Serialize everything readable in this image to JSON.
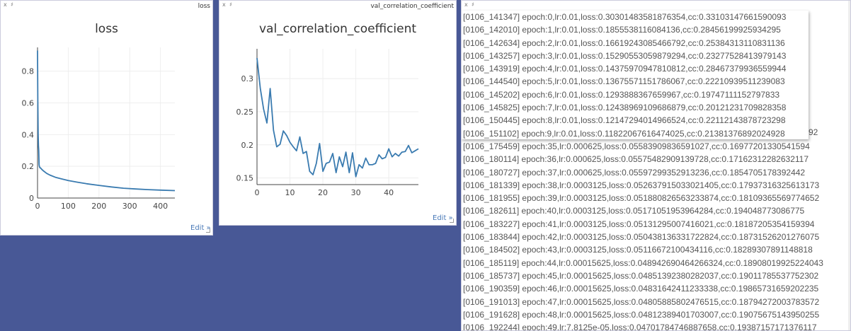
{
  "panes": {
    "loss": {
      "close": "x",
      "pin": "♯",
      "header_title": "loss",
      "edit": "Edit »"
    },
    "val": {
      "close": "x",
      "pin": "♯",
      "header_title": "val_correlation_coefficient",
      "edit": "Edit »"
    },
    "log": {
      "close": "x",
      "pin": "♯"
    }
  },
  "chart_data": [
    {
      "type": "line",
      "title": "loss",
      "xlabel": "",
      "ylabel": "",
      "xlim": [
        0,
        447
      ],
      "ylim": [
        0,
        0.95
      ],
      "xticks": [
        0,
        100,
        200,
        300,
        400
      ],
      "yticks": [
        0,
        0.2,
        0.4,
        0.6,
        0.8
      ],
      "ytick_labels": [
        "0",
        "0.2",
        "0.4",
        "0.6",
        "0.8"
      ],
      "grid": true,
      "color": "#3a7bb0",
      "points": [
        [
          0,
          0.93
        ],
        [
          1,
          0.62
        ],
        [
          2,
          0.4
        ],
        [
          3,
          0.33
        ],
        [
          4,
          0.3
        ],
        [
          5,
          0.21
        ],
        [
          6,
          0.2
        ],
        [
          8,
          0.19
        ],
        [
          10,
          0.19
        ],
        [
          14,
          0.18
        ],
        [
          20,
          0.17
        ],
        [
          30,
          0.155
        ],
        [
          40,
          0.145
        ],
        [
          60,
          0.13
        ],
        [
          80,
          0.12
        ],
        [
          100,
          0.11
        ],
        [
          130,
          0.1
        ],
        [
          160,
          0.09
        ],
        [
          200,
          0.08
        ],
        [
          240,
          0.07
        ],
        [
          280,
          0.062
        ],
        [
          320,
          0.057
        ],
        [
          360,
          0.053
        ],
        [
          400,
          0.05
        ],
        [
          447,
          0.047
        ]
      ]
    },
    {
      "type": "line",
      "title": "val_correlation_coefficient",
      "xlabel": "",
      "ylabel": "",
      "xlim": [
        0,
        49
      ],
      "ylim": [
        0.14,
        0.345
      ],
      "xticks": [
        0,
        10,
        20,
        30,
        40
      ],
      "yticks": [
        0.15,
        0.2,
        0.25,
        0.3
      ],
      "ytick_labels": [
        "0.15",
        "0.2",
        "0.25",
        "0.3"
      ],
      "grid": true,
      "color": "#3a7bb0",
      "points": [
        [
          0,
          0.331
        ],
        [
          1,
          0.285
        ],
        [
          2,
          0.254
        ],
        [
          3,
          0.233
        ],
        [
          4,
          0.285
        ],
        [
          5,
          0.222
        ],
        [
          6,
          0.197
        ],
        [
          7,
          0.201
        ],
        [
          8,
          0.221
        ],
        [
          9,
          0.214
        ],
        [
          10,
          0.204
        ],
        [
          11,
          0.197
        ],
        [
          12,
          0.191
        ],
        [
          13,
          0.212
        ],
        [
          14,
          0.187
        ],
        [
          15,
          0.19
        ],
        [
          16,
          0.16
        ],
        [
          17,
          0.155
        ],
        [
          18,
          0.172
        ],
        [
          19,
          0.202
        ],
        [
          20,
          0.16
        ],
        [
          21,
          0.172
        ],
        [
          22,
          0.174
        ],
        [
          23,
          0.187
        ],
        [
          24,
          0.158
        ],
        [
          25,
          0.182
        ],
        [
          26,
          0.167
        ],
        [
          27,
          0.189
        ],
        [
          28,
          0.158
        ],
        [
          29,
          0.188
        ],
        [
          30,
          0.152
        ],
        [
          31,
          0.17
        ],
        [
          32,
          0.165
        ],
        [
          33,
          0.18
        ],
        [
          34,
          0.17
        ],
        [
          35,
          0.17
        ],
        [
          36,
          0.172
        ],
        [
          37,
          0.185
        ],
        [
          38,
          0.179
        ],
        [
          39,
          0.181
        ],
        [
          40,
          0.194
        ],
        [
          41,
          0.182
        ],
        [
          42,
          0.187
        ],
        [
          43,
          0.183
        ],
        [
          44,
          0.189
        ],
        [
          45,
          0.19
        ],
        [
          46,
          0.199
        ],
        [
          47,
          0.188
        ],
        [
          48,
          0.191
        ],
        [
          49,
          0.194
        ]
      ]
    }
  ],
  "log": {
    "popup_lines": [
      "[0106_141347] epoch:0,lr:0.01,loss:0.30301483581876354,cc:0.33103147661590093",
      "[0106_142010] epoch:1,lr:0.01,loss:0.1855538116084136,cc:0.28456199925934295",
      "[0106_142634] epoch:2,lr:0.01,loss:0.16619243085466792,cc:0.25384313110831136",
      "[0106_143257] epoch:3,lr:0.01,loss:0.15290553059879294,cc:0.23277528413979143",
      "[0106_143919] epoch:4,lr:0.01,loss:0.14375970947810812,cc:0.28467379936559944",
      "[0106_144540] epoch:5,lr:0.01,loss:0.13675571151786067,cc:0.22210939511239083",
      "[0106_145202] epoch:6,lr:0.01,loss:0.1293888367659967,cc:0.19747111152797833",
      "[0106_145825] epoch:7,lr:0.01,loss:0.12438969109686879,cc:0.20121231709828358",
      "[0106_150445] epoch:8,lr:0.01,loss:0.12147294014966524,cc:0.22112143878723298",
      "[0106_151102] epoch:9,lr:0.01,loss:0.11822067616474025,cc:0.21381376892024928"
    ],
    "lines": [
      "[0106_175459] epoch:35,lr:0.000625,loss:0.05583909836591027,cc:0.16977201330541594",
      "[0106_180114] epoch:36,lr:0.000625,loss:0.05575482909139728,cc:0.17162312282632117",
      "[0106_180727] epoch:37,lr:0.000625,loss:0.05597299352913236,cc:0.1854705178392442",
      "[0106_181339] epoch:38,lr:0.0003125,loss:0.052637915033021405,cc:0.17937316325613173",
      "[0106_181955] epoch:39,lr:0.0003125,loss:0.051880826563233874,cc:0.18109365569774652",
      "[0106_182611] epoch:40,lr:0.0003125,loss:0.05171051953964284,cc:0.194048773086775",
      "[0106_183227] epoch:41,lr:0.0003125,loss:0.05131295007416021,cc:0.18187205354159394",
      "[0106_183844] epoch:42,lr:0.0003125,loss:0.050438136331722824,cc:0.18731526201276075",
      "[0106_184502] epoch:43,lr:0.0003125,loss:0.05116672100434116,cc:0.18289307891148818",
      "[0106_185119] epoch:44,lr:0.00015625,loss:0.048942690464266324,cc:0.18908019925224043",
      "[0106_185737] epoch:45,lr:0.00015625,loss:0.04851392380282037,cc:0.19011785537752302",
      "[0106_190359] epoch:46,lr:0.00015625,loss:0.04831642411233338,cc:0.19865731659202235",
      "[0106_191013] epoch:47,lr:0.00015625,loss:0.04805885802476515,cc:0.18794272003783572",
      "[0106_191628] epoch:48,lr:0.00015625,loss:0.04812389401703007,cc:0.19075675143950255",
      "[0106_192244] epoch:49,lr:7.8125e-05,loss:0.04701784746887658,cc:0.19387157171376117"
    ],
    "peek_suffix": "92"
  }
}
